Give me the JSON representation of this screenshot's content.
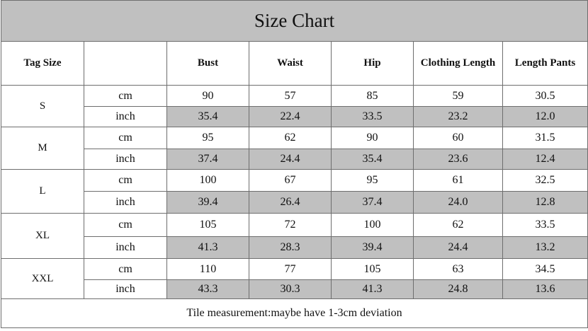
{
  "title": "Size Chart",
  "columns": {
    "tag_size": "Tag Size",
    "unit": "",
    "bust": "Bust",
    "waist": "Waist",
    "hip": "Hip",
    "clothing_length": "Clothing Length",
    "length_pants": "Length Pants"
  },
  "sizes": [
    {
      "name": "S",
      "cm": {
        "unit": "cm",
        "bust": "90",
        "waist": "57",
        "hip": "85",
        "clothing_length": "59",
        "length_pants": "30.5"
      },
      "inch": {
        "unit": "inch",
        "bust": "35.4",
        "waist": "22.4",
        "hip": "33.5",
        "clothing_length": "23.2",
        "length_pants": "12.0"
      }
    },
    {
      "name": "M",
      "cm": {
        "unit": "cm",
        "bust": "95",
        "waist": "62",
        "hip": "90",
        "clothing_length": "60",
        "length_pants": "31.5"
      },
      "inch": {
        "unit": "inch",
        "bust": "37.4",
        "waist": "24.4",
        "hip": "35.4",
        "clothing_length": "23.6",
        "length_pants": "12.4"
      }
    },
    {
      "name": "L",
      "cm": {
        "unit": "cm",
        "bust": "100",
        "waist": "67",
        "hip": "95",
        "clothing_length": "61",
        "length_pants": "32.5"
      },
      "inch": {
        "unit": "inch",
        "bust": "39.4",
        "waist": "26.4",
        "hip": "37.4",
        "clothing_length": "24.0",
        "length_pants": "12.8"
      }
    },
    {
      "name": "XL",
      "cm": {
        "unit": "cm",
        "bust": "105",
        "waist": "72",
        "hip": "100",
        "clothing_length": "62",
        "length_pants": "33.5"
      },
      "inch": {
        "unit": "inch",
        "bust": "41.3",
        "waist": "28.3",
        "hip": "39.4",
        "clothing_length": "24.4",
        "length_pants": "13.2"
      }
    },
    {
      "name": "XXL",
      "cm": {
        "unit": "cm",
        "bust": "110",
        "waist": "77",
        "hip": "105",
        "clothing_length": "63",
        "length_pants": "34.5"
      },
      "inch": {
        "unit": "inch",
        "bust": "43.3",
        "waist": "30.3",
        "hip": "41.3",
        "clothing_length": "24.8",
        "length_pants": "13.6"
      }
    }
  ],
  "footer": "Tile measurement:maybe have 1-3cm deviation",
  "colors": {
    "title_background": "#c0c0c0",
    "inch_row_background": "#c0c0c0",
    "border": "#6e6e6e"
  }
}
